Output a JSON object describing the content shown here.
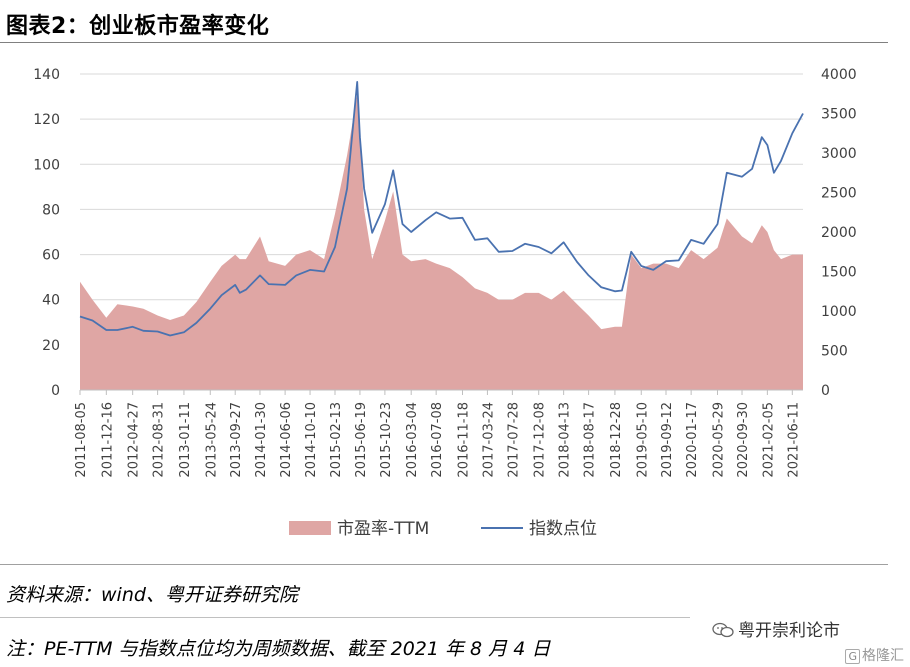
{
  "header": {
    "title": "图表2：创业板市盈率变化"
  },
  "footer": {
    "source": "资料来源：wind、粤开证券研究院",
    "note": "注：PE-TTM 与指数点位均为周频数据、截至 2021 年 8 月 4 日",
    "brand": "粤开崇利论市",
    "watermark": "格隆汇"
  },
  "chart_data": {
    "type": "area",
    "title": "",
    "xlabel": "",
    "ylabel": "",
    "y_left": {
      "min": 0,
      "max": 140,
      "ticks": [
        0,
        20,
        40,
        60,
        80,
        100,
        120,
        140
      ]
    },
    "y_right": {
      "min": 0,
      "max": 4000,
      "ticks": [
        0,
        500,
        1000,
        1500,
        2000,
        2500,
        3000,
        3500,
        4000
      ]
    },
    "x_tick_labels": [
      "2011-08-05",
      "2011-12-16",
      "2012-04-27",
      "2012-08-31",
      "2013-01-11",
      "2013-05-24",
      "2013-09-27",
      "2014-01-30",
      "2014-06-06",
      "2014-10-10",
      "2015-02-13",
      "2015-06-19",
      "2015-10-23",
      "2016-03-04",
      "2016-07-08",
      "2016-11-18",
      "2017-03-24",
      "2017-07-28",
      "2017-12-08",
      "2018-04-13",
      "2018-08-17",
      "2018-12-28",
      "2019-05-10",
      "2019-09-12",
      "2020-01-17",
      "2020-05-29",
      "2020-09-30",
      "2021-02-05",
      "2021-06-11"
    ],
    "grid": true,
    "legend": "bottom",
    "series": [
      {
        "name": "市盈率-TTM",
        "axis": "left",
        "kind": "area",
        "color": "#dfa6a4",
        "points": [
          [
            "2011-08-05",
            48
          ],
          [
            "2011-10-07",
            40
          ],
          [
            "2011-12-16",
            32
          ],
          [
            "2012-02-10",
            38
          ],
          [
            "2012-04-27",
            37
          ],
          [
            "2012-06-20",
            36
          ],
          [
            "2012-08-31",
            33
          ],
          [
            "2012-11-02",
            31
          ],
          [
            "2013-01-11",
            33
          ],
          [
            "2013-03-15",
            39
          ],
          [
            "2013-05-24",
            48
          ],
          [
            "2013-07-20",
            55
          ],
          [
            "2013-09-27",
            60
          ],
          [
            "2013-10-20",
            58
          ],
          [
            "2013-11-20",
            58
          ],
          [
            "2014-01-30",
            68
          ],
          [
            "2014-03-15",
            57
          ],
          [
            "2014-06-06",
            55
          ],
          [
            "2014-08-01",
            60
          ],
          [
            "2014-10-10",
            62
          ],
          [
            "2014-12-20",
            58
          ],
          [
            "2015-02-13",
            78
          ],
          [
            "2015-04-15",
            104
          ],
          [
            "2015-06-05",
            131
          ],
          [
            "2015-06-19",
            115
          ],
          [
            "2015-07-10",
            80
          ],
          [
            "2015-08-20",
            58
          ],
          [
            "2015-10-23",
            75
          ],
          [
            "2015-12-04",
            88
          ],
          [
            "2016-01-20",
            60
          ],
          [
            "2016-03-04",
            57
          ],
          [
            "2016-05-15",
            58
          ],
          [
            "2016-07-08",
            56
          ],
          [
            "2016-09-15",
            54
          ],
          [
            "2016-11-18",
            50
          ],
          [
            "2017-01-20",
            45
          ],
          [
            "2017-03-24",
            43
          ],
          [
            "2017-05-20",
            40
          ],
          [
            "2017-07-28",
            40
          ],
          [
            "2017-09-30",
            43
          ],
          [
            "2017-12-08",
            43
          ],
          [
            "2018-02-10",
            40
          ],
          [
            "2018-04-13",
            44
          ],
          [
            "2018-06-20",
            38
          ],
          [
            "2018-08-17",
            33
          ],
          [
            "2018-10-20",
            27
          ],
          [
            "2018-12-28",
            28
          ],
          [
            "2019-02-01",
            28
          ],
          [
            "2019-02-25",
            44
          ],
          [
            "2019-03-20",
            60
          ],
          [
            "2019-05-10",
            54
          ],
          [
            "2019-07-10",
            56
          ],
          [
            "2019-09-12",
            56
          ],
          [
            "2019-11-15",
            54
          ],
          [
            "2020-01-17",
            62
          ],
          [
            "2020-03-20",
            58
          ],
          [
            "2020-05-29",
            63
          ],
          [
            "2020-07-15",
            76
          ],
          [
            "2020-09-30",
            68
          ],
          [
            "2020-11-20",
            65
          ],
          [
            "2021-01-08",
            73
          ],
          [
            "2021-02-05",
            70
          ],
          [
            "2021-03-10",
            62
          ],
          [
            "2021-04-15",
            58
          ],
          [
            "2021-06-11",
            60
          ],
          [
            "2021-08-04",
            60
          ]
        ]
      },
      {
        "name": "指数点位",
        "axis": "right",
        "kind": "line",
        "color": "#4a72b0",
        "points": [
          [
            "2011-08-05",
            930
          ],
          [
            "2011-10-07",
            880
          ],
          [
            "2011-12-16",
            760
          ],
          [
            "2012-02-10",
            760
          ],
          [
            "2012-04-27",
            800
          ],
          [
            "2012-06-20",
            750
          ],
          [
            "2012-08-31",
            740
          ],
          [
            "2012-11-02",
            690
          ],
          [
            "2013-01-11",
            730
          ],
          [
            "2013-03-15",
            850
          ],
          [
            "2013-05-24",
            1030
          ],
          [
            "2013-07-20",
            1200
          ],
          [
            "2013-09-27",
            1330
          ],
          [
            "2013-10-20",
            1230
          ],
          [
            "2013-11-20",
            1270
          ],
          [
            "2014-01-30",
            1450
          ],
          [
            "2014-03-15",
            1340
          ],
          [
            "2014-06-06",
            1330
          ],
          [
            "2014-08-01",
            1450
          ],
          [
            "2014-10-10",
            1520
          ],
          [
            "2014-12-20",
            1500
          ],
          [
            "2015-02-13",
            1810
          ],
          [
            "2015-04-15",
            2550
          ],
          [
            "2015-06-05",
            3900
          ],
          [
            "2015-06-19",
            3200
          ],
          [
            "2015-07-10",
            2550
          ],
          [
            "2015-08-20",
            1990
          ],
          [
            "2015-10-23",
            2350
          ],
          [
            "2015-12-04",
            2780
          ],
          [
            "2016-01-20",
            2100
          ],
          [
            "2016-03-04",
            2000
          ],
          [
            "2016-05-15",
            2150
          ],
          [
            "2016-07-08",
            2250
          ],
          [
            "2016-09-15",
            2170
          ],
          [
            "2016-11-18",
            2180
          ],
          [
            "2017-01-20",
            1900
          ],
          [
            "2017-03-24",
            1920
          ],
          [
            "2017-05-20",
            1750
          ],
          [
            "2017-07-28",
            1760
          ],
          [
            "2017-09-30",
            1850
          ],
          [
            "2017-12-08",
            1810
          ],
          [
            "2018-02-10",
            1730
          ],
          [
            "2018-04-13",
            1870
          ],
          [
            "2018-06-20",
            1620
          ],
          [
            "2018-08-17",
            1450
          ],
          [
            "2018-10-20",
            1300
          ],
          [
            "2018-12-28",
            1250
          ],
          [
            "2019-02-01",
            1260
          ],
          [
            "2019-02-25",
            1500
          ],
          [
            "2019-03-20",
            1750
          ],
          [
            "2019-05-10",
            1570
          ],
          [
            "2019-07-10",
            1520
          ],
          [
            "2019-09-12",
            1630
          ],
          [
            "2019-11-15",
            1640
          ],
          [
            "2020-01-17",
            1900
          ],
          [
            "2020-03-20",
            1850
          ],
          [
            "2020-05-29",
            2100
          ],
          [
            "2020-07-15",
            2750
          ],
          [
            "2020-09-30",
            2700
          ],
          [
            "2020-11-20",
            2800
          ],
          [
            "2021-01-08",
            3200
          ],
          [
            "2021-02-05",
            3100
          ],
          [
            "2021-03-10",
            2750
          ],
          [
            "2021-04-15",
            2900
          ],
          [
            "2021-06-11",
            3250
          ],
          [
            "2021-08-04",
            3500
          ]
        ]
      }
    ]
  }
}
